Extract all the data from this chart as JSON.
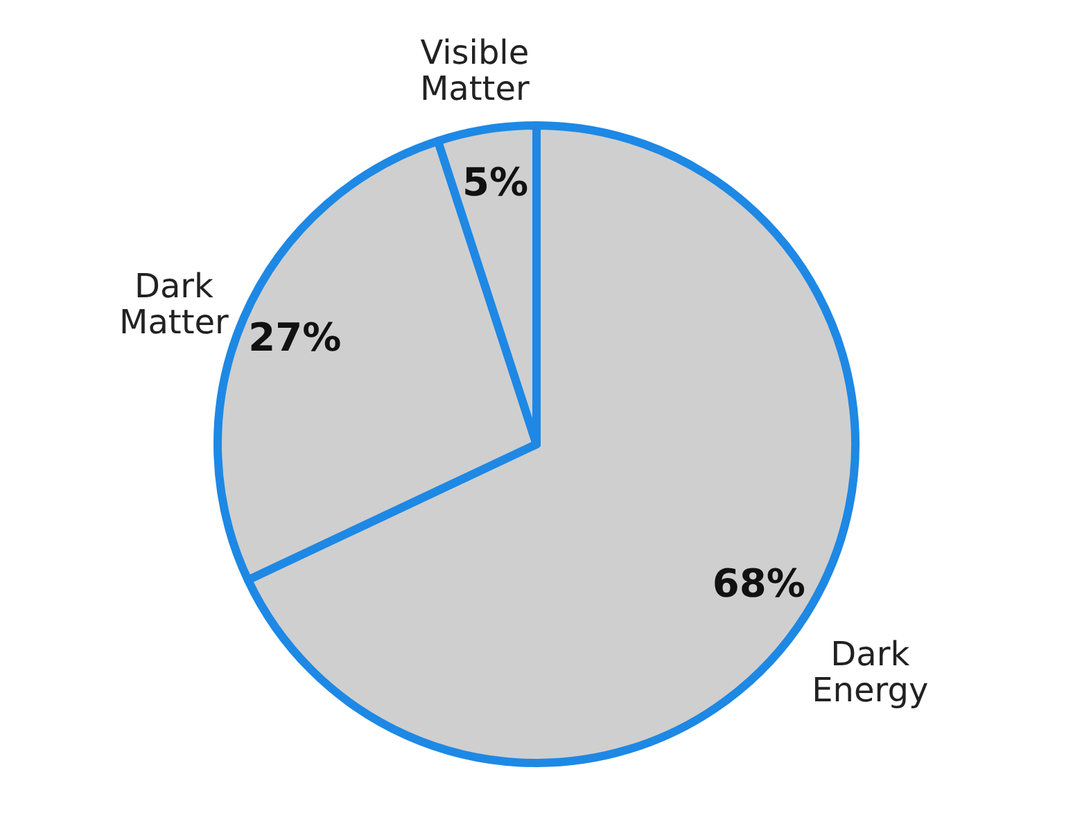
{
  "chart_data": {
    "type": "pie",
    "categories": [
      "Dark Energy",
      "Dark Matter",
      "Visible Matter"
    ],
    "values": [
      68,
      27,
      5
    ],
    "colors": [
      "#cfcfcf",
      "#cfcfcf",
      "#cfcfcf"
    ],
    "value_labels": [
      "68%",
      "27%",
      "5%"
    ]
  }
}
